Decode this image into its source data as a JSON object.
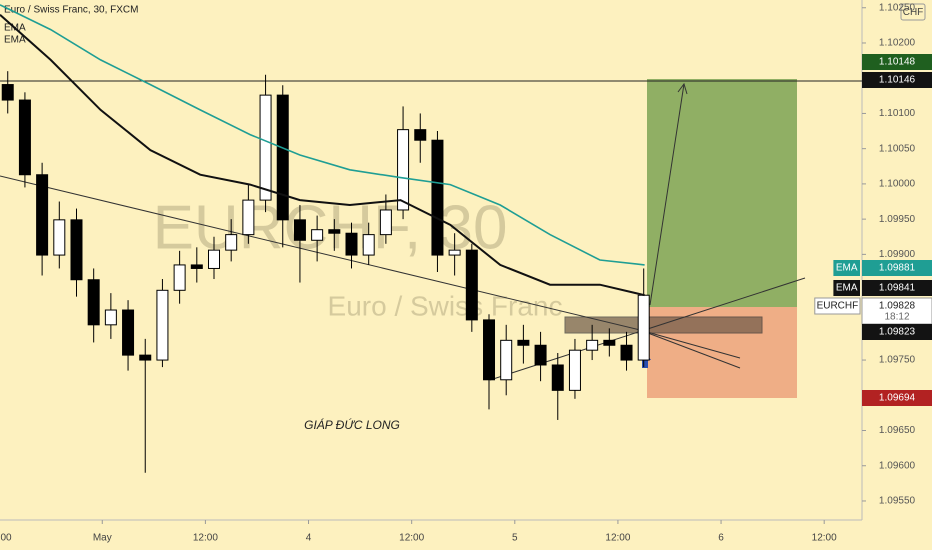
{
  "chart_data": {
    "type": "candlestick",
    "title": "Euro / Swiss Franc, 30, FXCM",
    "watermark": "EURCHF, 30",
    "watermark_subtitle": "Euro / Swiss Franc",
    "annotation": "GIÁP ĐỨC LONG",
    "currency": "CHF",
    "up_color": "#ffffff",
    "down_color": "#000000",
    "x": [
      -11,
      -9,
      -7,
      -5,
      -3,
      -1,
      1,
      3,
      5,
      7,
      9,
      11,
      13,
      15,
      17,
      19,
      21,
      23,
      25,
      27,
      29,
      31,
      33,
      35,
      37,
      39,
      41,
      43,
      45,
      47,
      49,
      51,
      53,
      55,
      57,
      59,
      61,
      63
    ],
    "open": [
      1.10141,
      1.10119,
      1.10013,
      1.09899,
      1.09949,
      1.09864,
      1.098,
      1.09821,
      1.09757,
      1.0975,
      1.09849,
      1.09885,
      1.0988,
      1.09906,
      1.09928,
      1.09977,
      1.10126,
      1.09949,
      1.0992,
      1.09935,
      1.0993,
      1.09899,
      1.09928,
      1.09963,
      1.10077,
      1.10062,
      1.09899,
      1.09906,
      1.09807,
      1.09722,
      1.09778,
      1.09771,
      1.09743,
      1.09707,
      1.09764,
      1.09778,
      1.09771,
      1.0975
    ],
    "high": [
      1.1016,
      1.1013,
      1.1003,
      1.09975,
      1.09965,
      1.0988,
      1.09845,
      1.09835,
      1.0978,
      1.09865,
      1.09905,
      1.0991,
      1.09925,
      1.0995,
      1.1,
      1.10155,
      1.1014,
      1.0997,
      1.09955,
      1.0995,
      1.09945,
      1.09945,
      1.09985,
      1.1011,
      1.101,
      1.10075,
      1.0993,
      1.09915,
      1.09815,
      1.098,
      1.098,
      1.0979,
      1.0976,
      1.0978,
      1.098,
      1.09795,
      1.0979,
      1.0988
    ],
    "low": [
      1.101,
      1.09995,
      1.0987,
      1.0988,
      1.0984,
      1.09775,
      1.0978,
      1.09735,
      1.0959,
      1.0974,
      1.0983,
      1.0986,
      1.09865,
      1.0989,
      1.09915,
      1.0996,
      1.0991,
      1.0986,
      1.0989,
      1.09905,
      1.0988,
      1.09885,
      1.09915,
      1.0995,
      1.1003,
      1.09875,
      1.0987,
      1.0979,
      1.0968,
      1.097,
      1.09745,
      1.0972,
      1.09665,
      1.09695,
      1.0975,
      1.09755,
      1.09735,
      1.0974
    ],
    "close": [
      1.10119,
      1.10013,
      1.09899,
      1.09949,
      1.09864,
      1.098,
      1.09821,
      1.09757,
      1.0975,
      1.09849,
      1.09885,
      1.0988,
      1.09906,
      1.09928,
      1.09977,
      1.10126,
      1.09949,
      1.0992,
      1.09935,
      1.0993,
      1.09899,
      1.09928,
      1.09963,
      1.10077,
      1.10062,
      1.09899,
      1.09906,
      1.09807,
      1.09722,
      1.09778,
      1.09771,
      1.09743,
      1.09707,
      1.09764,
      1.09778,
      1.09771,
      1.0975,
      1.09842
    ],
    "series": [
      {
        "name": "EMA",
        "color": "#1f9e94",
        "x": [
          -11.9,
          -6,
          -0.2,
          5.6,
          11.4,
          17.2,
          23,
          28.8,
          34.7,
          40.5,
          46.3,
          52.1,
          57.9,
          63.1
        ],
        "values": [
          1.10254,
          1.10219,
          1.10176,
          1.10141,
          1.10105,
          1.1007,
          1.10041,
          1.1002,
          1.10009,
          1.09999,
          1.0997,
          1.09928,
          1.09892,
          1.09885
        ]
      },
      {
        "name": "EMA",
        "color": "#111111",
        "x": [
          -11.9,
          -6,
          -0.2,
          5.6,
          11.4,
          17.2,
          23,
          28.8,
          34.7,
          40.5,
          46.3,
          52.1,
          57.9,
          63.1
        ],
        "values": [
          1.1024,
          1.10176,
          1.10105,
          1.10048,
          1.10013,
          1.09999,
          1.09977,
          1.0997,
          1.09977,
          1.09942,
          1.09885,
          1.09857,
          1.09857,
          1.09842
        ]
      }
    ],
    "xlim": [
      -11.9,
      88.4
    ],
    "xticks": [
      {
        "value": -12,
        "label": "00"
      },
      {
        "value": 0,
        "label": "May"
      },
      {
        "value": 12,
        "label": "12:00"
      },
      {
        "value": 24,
        "label": "4"
      },
      {
        "value": 36,
        "label": "12:00"
      },
      {
        "value": 48,
        "label": "5"
      },
      {
        "value": 60,
        "label": "12:00"
      },
      {
        "value": 72,
        "label": "6"
      },
      {
        "value": 84,
        "label": "12:00"
      }
    ],
    "ylim": [
      1.09523,
      1.10261
    ],
    "yticks": [
      {
        "value": 1.1025,
        "label": "1.10250"
      },
      {
        "value": 1.102,
        "label": "1.10200"
      },
      {
        "value": 1.101,
        "label": "1.10100"
      },
      {
        "value": 1.1005,
        "label": "1.10050"
      },
      {
        "value": 1.1,
        "label": "1.10000"
      },
      {
        "value": 1.0995,
        "label": "1.09950"
      },
      {
        "value": 1.099,
        "label": "1.09900"
      },
      {
        "value": 1.0975,
        "label": "1.09750"
      },
      {
        "value": 1.0965,
        "label": "1.09650"
      },
      {
        "value": 1.096,
        "label": "1.09600"
      },
      {
        "value": 1.0955,
        "label": "1.09550"
      }
    ],
    "hline": 1.10146,
    "price_labels": [
      {
        "value": 1.10148,
        "color": "#1f5f1f"
      },
      {
        "value": 1.10146,
        "color": "#131313"
      },
      {
        "tag": "EMA",
        "value": 1.09881,
        "color": "#1f9e94"
      },
      {
        "tag": "EMA",
        "value": 1.09841,
        "color": "#131313"
      },
      {
        "tag": "EURCHF",
        "value": 1.09828,
        "countdown": "18:12",
        "color": "#ffffff"
      },
      {
        "value": 1.09823,
        "color": "#131313"
      },
      {
        "value": 1.09694,
        "color": "#b22222"
      }
    ]
  }
}
